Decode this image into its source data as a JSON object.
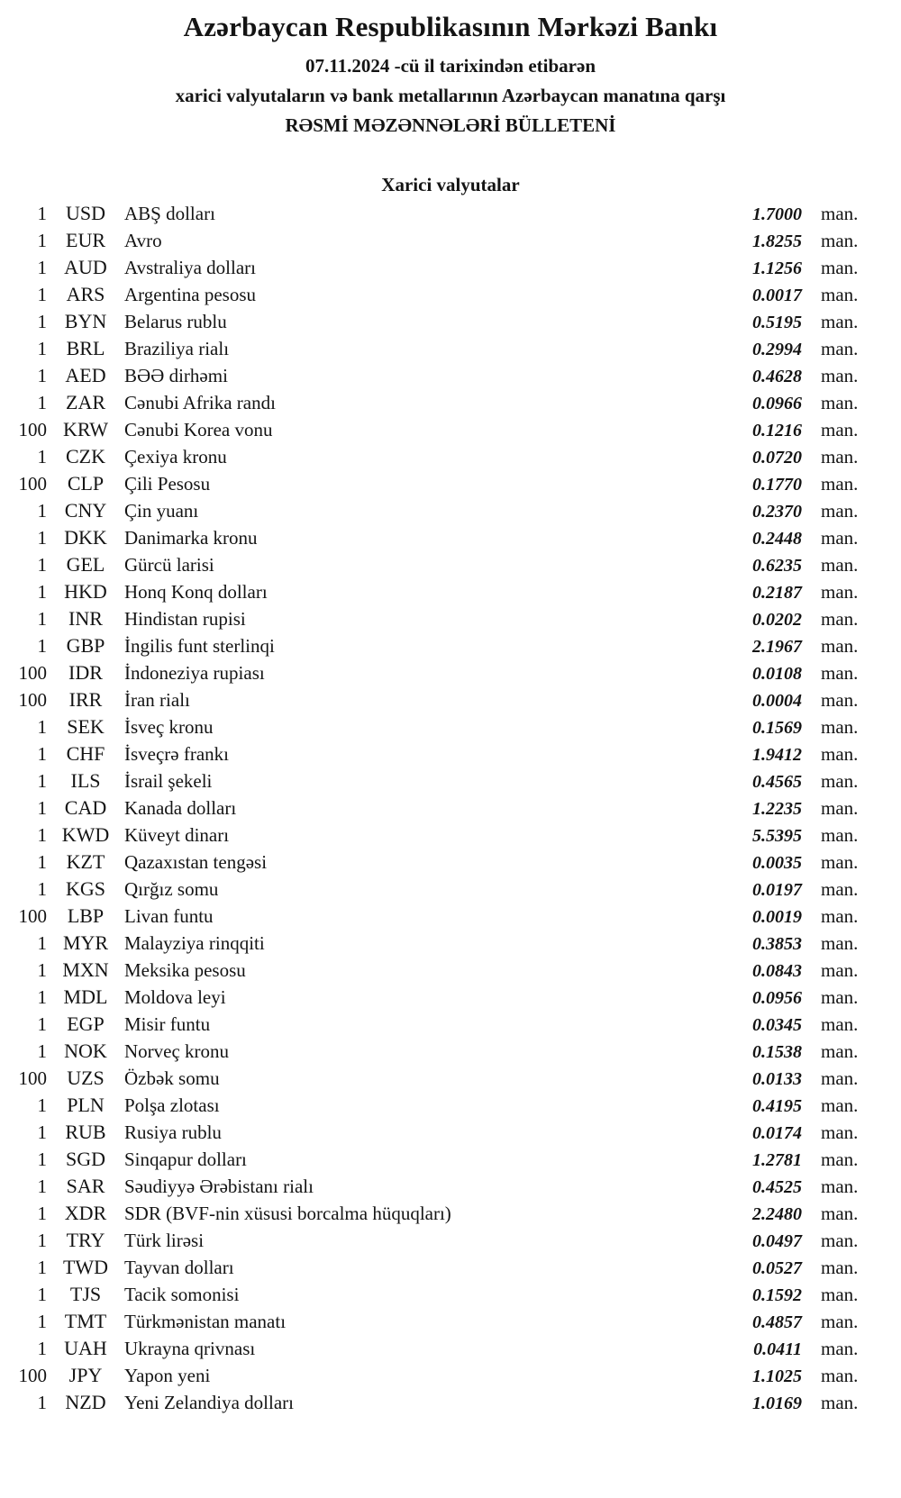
{
  "header": {
    "bank_title": "Azərbaycan Respublikasının Mərkəzi Bankı",
    "date_line": "07.11.2024 -cü il tarixindən etibarən",
    "subtitle_line": "xarici valyutaların və bank metallarının Azərbaycan manatına qarşı",
    "bulletin_line": "RƏSMİ MƏZƏNNƏLƏRİ BÜLLETENİ"
  },
  "section": {
    "title": "Xarici valyutalar"
  },
  "unit_label": "man.",
  "text_color": "#141414",
  "background_color": "#ffffff",
  "rows": [
    {
      "qty": "1",
      "code": "USD",
      "name": "ABŞ dolları",
      "rate": "1.7000"
    },
    {
      "qty": "1",
      "code": "EUR",
      "name": "Avro",
      "rate": "1.8255"
    },
    {
      "qty": "1",
      "code": "AUD",
      "name": "Avstraliya dolları",
      "rate": "1.1256"
    },
    {
      "qty": "1",
      "code": "ARS",
      "name": "Argentina pesosu",
      "rate": "0.0017"
    },
    {
      "qty": "1",
      "code": "BYN",
      "name": "Belarus rublu",
      "rate": "0.5195"
    },
    {
      "qty": "1",
      "code": "BRL",
      "name": "Braziliya rialı",
      "rate": "0.2994"
    },
    {
      "qty": "1",
      "code": "AED",
      "name": "BƏƏ dirhəmi",
      "rate": "0.4628"
    },
    {
      "qty": "1",
      "code": "ZAR",
      "name": "Cənubi Afrika randı",
      "rate": "0.0966"
    },
    {
      "qty": "100",
      "code": "KRW",
      "name": "Cənubi Korea vonu",
      "rate": "0.1216"
    },
    {
      "qty": "1",
      "code": "CZK",
      "name": "Çexiya kronu",
      "rate": "0.0720"
    },
    {
      "qty": "100",
      "code": "CLP",
      "name": "Çili Pesosu",
      "rate": "0.1770"
    },
    {
      "qty": "1",
      "code": "CNY",
      "name": "Çin yuanı",
      "rate": "0.2370"
    },
    {
      "qty": "1",
      "code": "DKK",
      "name": "Danimarka kronu",
      "rate": "0.2448"
    },
    {
      "qty": "1",
      "code": "GEL",
      "name": "Gürcü larisi",
      "rate": "0.6235"
    },
    {
      "qty": "1",
      "code": "HKD",
      "name": "Honq Konq dolları",
      "rate": "0.2187"
    },
    {
      "qty": "1",
      "code": "INR",
      "name": "Hindistan rupisi",
      "rate": "0.0202"
    },
    {
      "qty": "1",
      "code": "GBP",
      "name": "İngilis funt sterlinqi",
      "rate": "2.1967"
    },
    {
      "qty": "100",
      "code": "IDR",
      "name": "İndoneziya rupiası",
      "rate": "0.0108"
    },
    {
      "qty": "100",
      "code": "IRR",
      "name": "İran rialı",
      "rate": "0.0004"
    },
    {
      "qty": "1",
      "code": "SEK",
      "name": "İsveç kronu",
      "rate": "0.1569"
    },
    {
      "qty": "1",
      "code": "CHF",
      "name": "İsveçrə frankı",
      "rate": "1.9412"
    },
    {
      "qty": "1",
      "code": "ILS",
      "name": "İsrail şekeli",
      "rate": "0.4565"
    },
    {
      "qty": "1",
      "code": "CAD",
      "name": "Kanada dolları",
      "rate": "1.2235"
    },
    {
      "qty": "1",
      "code": "KWD",
      "name": "Küveyt dinarı",
      "rate": "5.5395"
    },
    {
      "qty": "1",
      "code": "KZT",
      "name": "Qazaxıstan tengəsi",
      "rate": "0.0035"
    },
    {
      "qty": "1",
      "code": "KGS",
      "name": "Qırğız somu",
      "rate": "0.0197"
    },
    {
      "qty": "100",
      "code": "LBP",
      "name": "Livan funtu",
      "rate": "0.0019"
    },
    {
      "qty": "1",
      "code": "MYR",
      "name": "Malayziya rinqqiti",
      "rate": "0.3853"
    },
    {
      "qty": "1",
      "code": "MXN",
      "name": "Meksika pesosu",
      "rate": "0.0843"
    },
    {
      "qty": "1",
      "code": "MDL",
      "name": "Moldova leyi",
      "rate": "0.0956"
    },
    {
      "qty": "1",
      "code": "EGP",
      "name": "Misir funtu",
      "rate": "0.0345"
    },
    {
      "qty": "1",
      "code": "NOK",
      "name": "Norveç kronu",
      "rate": "0.1538"
    },
    {
      "qty": "100",
      "code": "UZS",
      "name": "Özbək somu",
      "rate": "0.0133"
    },
    {
      "qty": "1",
      "code": "PLN",
      "name": "Polşa zlotası",
      "rate": "0.4195"
    },
    {
      "qty": "1",
      "code": "RUB",
      "name": "Rusiya rublu",
      "rate": "0.0174"
    },
    {
      "qty": "1",
      "code": "SGD",
      "name": "Sinqapur dolları",
      "rate": "1.2781"
    },
    {
      "qty": "1",
      "code": "SAR",
      "name": "Səudiyyə Ərəbistanı rialı",
      "rate": "0.4525"
    },
    {
      "qty": "1",
      "code": "XDR",
      "name": "SDR (BVF-nin xüsusi borcalma hüquqları)",
      "rate": "2.2480"
    },
    {
      "qty": "1",
      "code": "TRY",
      "name": "Türk lirəsi",
      "rate": "0.0497"
    },
    {
      "qty": "1",
      "code": "TWD",
      "name": "Tayvan dolları",
      "rate": "0.0527"
    },
    {
      "qty": "1",
      "code": "TJS",
      "name": "Tacik somonisi",
      "rate": "0.1592"
    },
    {
      "qty": "1",
      "code": "TMT",
      "name": "Türkmənistan manatı",
      "rate": "0.4857"
    },
    {
      "qty": "1",
      "code": "UAH",
      "name": "Ukrayna qrivnası",
      "rate": "0.0411"
    },
    {
      "qty": "100",
      "code": "JPY",
      "name": "Yapon yeni",
      "rate": "1.1025"
    },
    {
      "qty": "1",
      "code": "NZD",
      "name": "Yeni Zelandiya dolları",
      "rate": "1.0169"
    }
  ]
}
